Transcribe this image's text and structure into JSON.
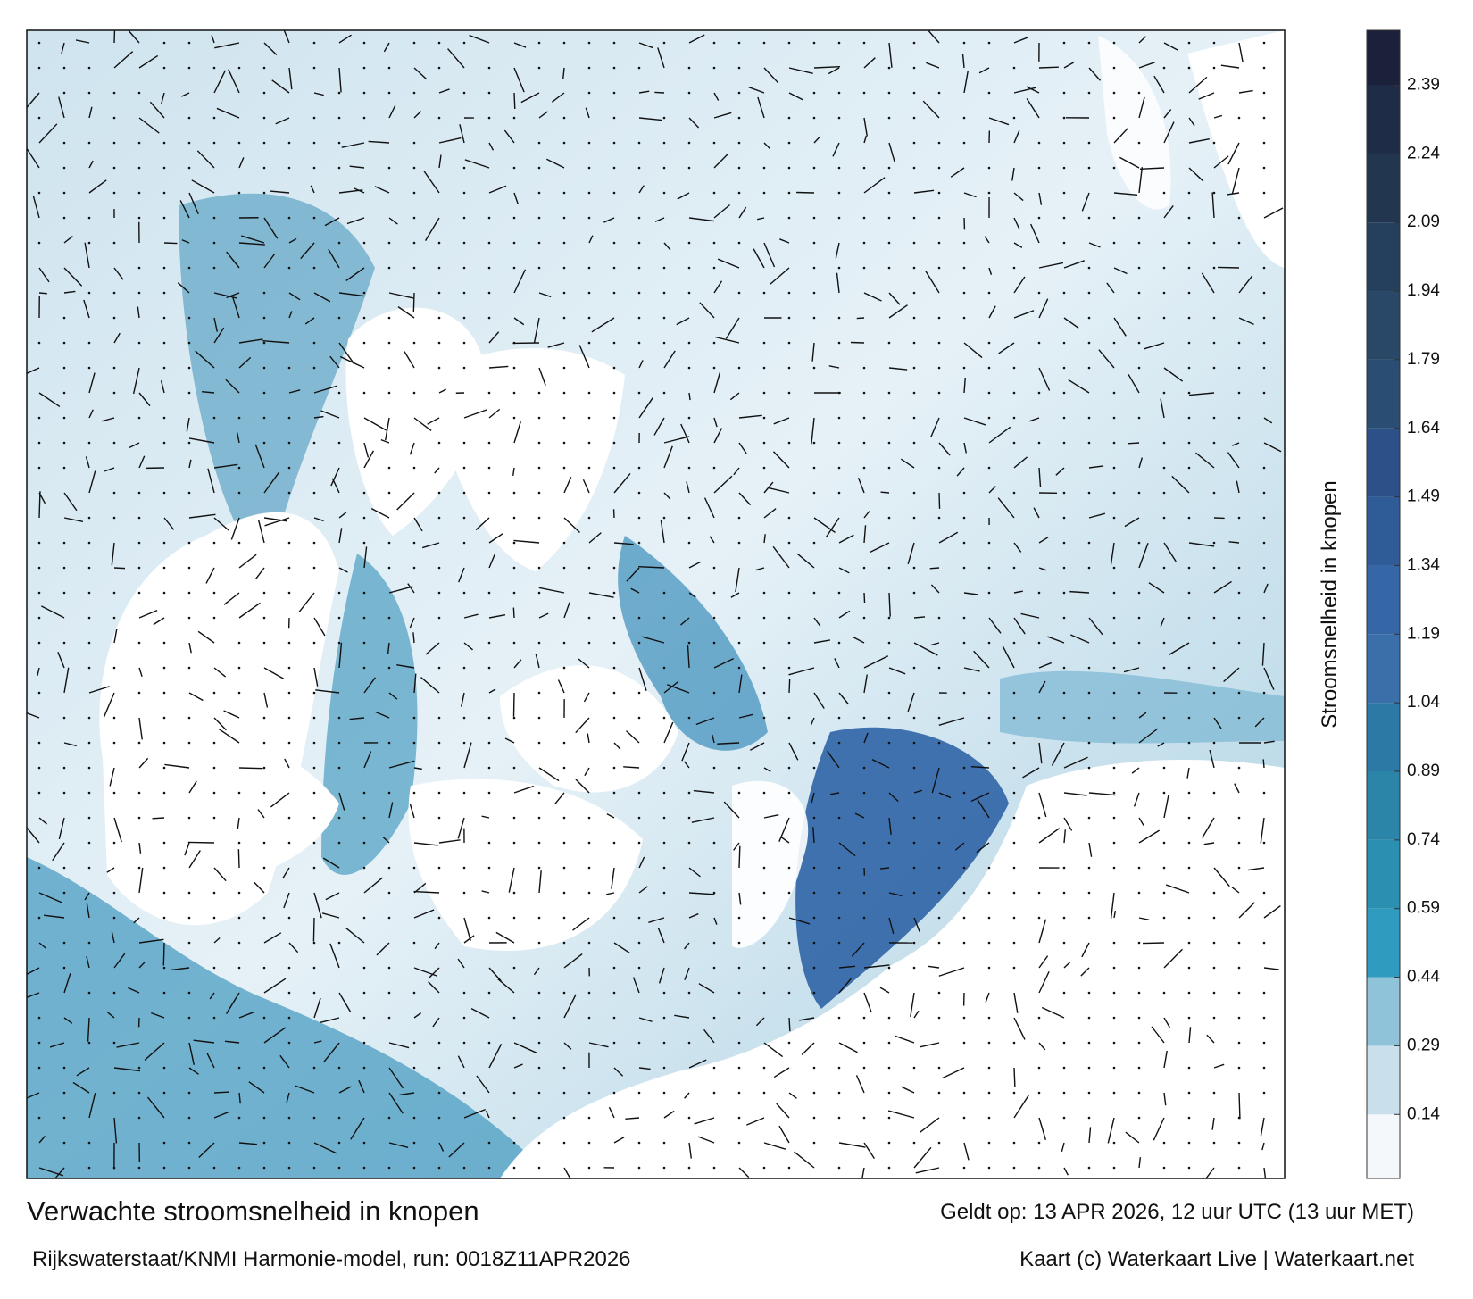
{
  "header": {
    "title": "Verwachte stroomsnelheid in knopen",
    "subtitle": "Rijkswaterstaat/KNMI Harmonie-model, run: 0018Z11APR2026",
    "valid_time": "Geldt op: 13 APR 2026, 12 uur UTC (13 uur MET)",
    "credits": "Kaart (c) Waterkaart Live | Waterkaart.net"
  },
  "colorbar": {
    "label": "Stroomsnelheid in knopen",
    "lim": [
      0,
      2.51
    ],
    "ticks": [
      0.14,
      0.29,
      0.44,
      0.59,
      0.74,
      0.89,
      1.04,
      1.19,
      1.34,
      1.49,
      1.64,
      1.79,
      1.94,
      2.09,
      2.24,
      2.39
    ],
    "colors": [
      "#f4f8fb",
      "#c9e0ec",
      "#8fc3da",
      "#2f9bbe",
      "#2a8fb0",
      "#2b85a8",
      "#2d79a5",
      "#3a6faa",
      "#3566a6",
      "#2f5b96",
      "#2c5189",
      "#2a4e73",
      "#294766",
      "#24405d",
      "#223650",
      "#1f2c47",
      "#1b203b"
    ]
  }
}
